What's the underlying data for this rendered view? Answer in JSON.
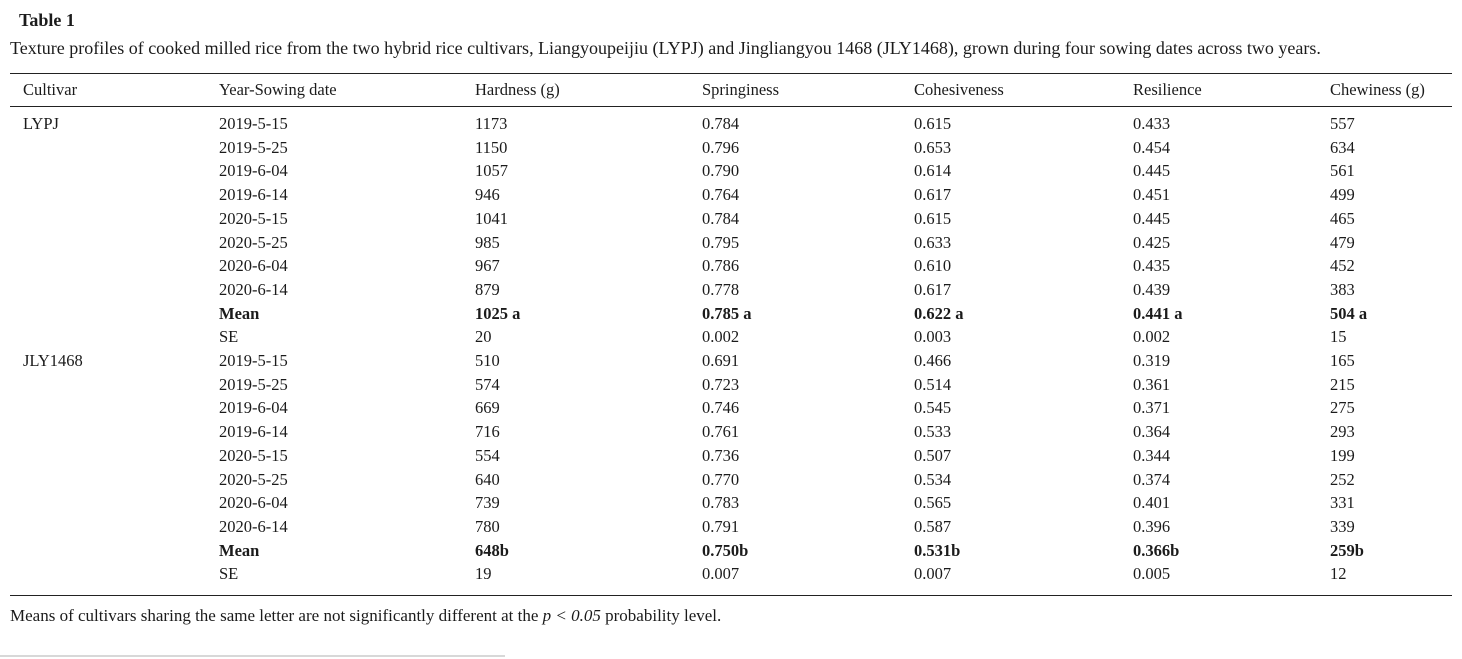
{
  "table": {
    "label": "Table 1",
    "caption": "Texture profiles of cooked milled rice from the two hybrid rice cultivars, Liangyoupeijiu (LYPJ) and Jingliangyou 1468 (JLY1468), grown during four sowing dates across two years.",
    "columns": [
      "Cultivar",
      "Year-Sowing date",
      "Hardness (g)",
      "Springiness",
      "Cohesiveness",
      "Resilience",
      "Chewiness (g)"
    ],
    "rows": [
      {
        "bold": false,
        "cells": [
          "LYPJ",
          "2019-5-15",
          "1173",
          "0.784",
          "0.615",
          "0.433",
          "557"
        ]
      },
      {
        "bold": false,
        "cells": [
          "",
          "2019-5-25",
          "1150",
          "0.796",
          "0.653",
          "0.454",
          "634"
        ]
      },
      {
        "bold": false,
        "cells": [
          "",
          "2019-6-04",
          "1057",
          "0.790",
          "0.614",
          "0.445",
          "561"
        ]
      },
      {
        "bold": false,
        "cells": [
          "",
          "2019-6-14",
          "946",
          "0.764",
          "0.617",
          "0.451",
          "499"
        ]
      },
      {
        "bold": false,
        "cells": [
          "",
          "2020-5-15",
          "1041",
          "0.784",
          "0.615",
          "0.445",
          "465"
        ]
      },
      {
        "bold": false,
        "cells": [
          "",
          "2020-5-25",
          "985",
          "0.795",
          "0.633",
          "0.425",
          "479"
        ]
      },
      {
        "bold": false,
        "cells": [
          "",
          "2020-6-04",
          "967",
          "0.786",
          "0.610",
          "0.435",
          "452"
        ]
      },
      {
        "bold": false,
        "cells": [
          "",
          "2020-6-14",
          "879",
          "0.778",
          "0.617",
          "0.439",
          "383"
        ]
      },
      {
        "bold": true,
        "cells": [
          "",
          "Mean",
          "1025 a",
          "0.785 a",
          "0.622 a",
          "0.441 a",
          "504 a"
        ]
      },
      {
        "bold": false,
        "cells": [
          "",
          "SE",
          "20",
          "0.002",
          "0.003",
          "0.002",
          "15"
        ]
      },
      {
        "bold": false,
        "cells": [
          "JLY1468",
          "2019-5-15",
          "510",
          "0.691",
          "0.466",
          "0.319",
          "165"
        ]
      },
      {
        "bold": false,
        "cells": [
          "",
          "2019-5-25",
          "574",
          "0.723",
          "0.514",
          "0.361",
          "215"
        ]
      },
      {
        "bold": false,
        "cells": [
          "",
          "2019-6-04",
          "669",
          "0.746",
          "0.545",
          "0.371",
          "275"
        ]
      },
      {
        "bold": false,
        "cells": [
          "",
          "2019-6-14",
          "716",
          "0.761",
          "0.533",
          "0.364",
          "293"
        ]
      },
      {
        "bold": false,
        "cells": [
          "",
          "2020-5-15",
          "554",
          "0.736",
          "0.507",
          "0.344",
          "199"
        ]
      },
      {
        "bold": false,
        "cells": [
          "",
          "2020-5-25",
          "640",
          "0.770",
          "0.534",
          "0.374",
          "252"
        ]
      },
      {
        "bold": false,
        "cells": [
          "",
          "2020-6-04",
          "739",
          "0.783",
          "0.565",
          "0.401",
          "331"
        ]
      },
      {
        "bold": false,
        "cells": [
          "",
          "2020-6-14",
          "780",
          "0.791",
          "0.587",
          "0.396",
          "339"
        ]
      },
      {
        "bold": true,
        "cells": [
          "",
          "Mean",
          "648b",
          "0.750b",
          "0.531b",
          "0.366b",
          "259b"
        ]
      },
      {
        "bold": false,
        "cells": [
          "",
          "SE",
          "19",
          "0.007",
          "0.007",
          "0.005",
          "12"
        ]
      }
    ],
    "footnote_pre": "Means of cultivars sharing the same letter are not significantly different at the ",
    "footnote_italic": "p < 0.05",
    "footnote_post": " probability level."
  },
  "chart_data": {
    "type": "table",
    "title": "Table 1. Texture profiles of cooked milled rice from LYPJ and JLY1468 across four sowing dates in two years",
    "columns": [
      "Cultivar",
      "Year-Sowing date",
      "Hardness (g)",
      "Springiness",
      "Cohesiveness",
      "Resilience",
      "Chewiness (g)"
    ],
    "series": [
      {
        "name": "LYPJ",
        "rows": [
          {
            "date": "2019-5-15",
            "hardness": 1173,
            "springiness": 0.784,
            "cohesiveness": 0.615,
            "resilience": 0.433,
            "chewiness": 557
          },
          {
            "date": "2019-5-25",
            "hardness": 1150,
            "springiness": 0.796,
            "cohesiveness": 0.653,
            "resilience": 0.454,
            "chewiness": 634
          },
          {
            "date": "2019-6-04",
            "hardness": 1057,
            "springiness": 0.79,
            "cohesiveness": 0.614,
            "resilience": 0.445,
            "chewiness": 561
          },
          {
            "date": "2019-6-14",
            "hardness": 946,
            "springiness": 0.764,
            "cohesiveness": 0.617,
            "resilience": 0.451,
            "chewiness": 499
          },
          {
            "date": "2020-5-15",
            "hardness": 1041,
            "springiness": 0.784,
            "cohesiveness": 0.615,
            "resilience": 0.445,
            "chewiness": 465
          },
          {
            "date": "2020-5-25",
            "hardness": 985,
            "springiness": 0.795,
            "cohesiveness": 0.633,
            "resilience": 0.425,
            "chewiness": 479
          },
          {
            "date": "2020-6-04",
            "hardness": 967,
            "springiness": 0.786,
            "cohesiveness": 0.61,
            "resilience": 0.435,
            "chewiness": 452
          },
          {
            "date": "2020-6-14",
            "hardness": 879,
            "springiness": 0.778,
            "cohesiveness": 0.617,
            "resilience": 0.439,
            "chewiness": 383
          }
        ],
        "mean": {
          "hardness": "1025 a",
          "springiness": "0.785 a",
          "cohesiveness": "0.622 a",
          "resilience": "0.441 a",
          "chewiness": "504 a"
        },
        "se": {
          "hardness": 20,
          "springiness": 0.002,
          "cohesiveness": 0.003,
          "resilience": 0.002,
          "chewiness": 15
        }
      },
      {
        "name": "JLY1468",
        "rows": [
          {
            "date": "2019-5-15",
            "hardness": 510,
            "springiness": 0.691,
            "cohesiveness": 0.466,
            "resilience": 0.319,
            "chewiness": 165
          },
          {
            "date": "2019-5-25",
            "hardness": 574,
            "springiness": 0.723,
            "cohesiveness": 0.514,
            "resilience": 0.361,
            "chewiness": 215
          },
          {
            "date": "2019-6-04",
            "hardness": 669,
            "springiness": 0.746,
            "cohesiveness": 0.545,
            "resilience": 0.371,
            "chewiness": 275
          },
          {
            "date": "2019-6-14",
            "hardness": 716,
            "springiness": 0.761,
            "cohesiveness": 0.533,
            "resilience": 0.364,
            "chewiness": 293
          },
          {
            "date": "2020-5-15",
            "hardness": 554,
            "springiness": 0.736,
            "cohesiveness": 0.507,
            "resilience": 0.344,
            "chewiness": 199
          },
          {
            "date": "2020-5-25",
            "hardness": 640,
            "springiness": 0.77,
            "cohesiveness": 0.534,
            "resilience": 0.374,
            "chewiness": 252
          },
          {
            "date": "2020-6-04",
            "hardness": 739,
            "springiness": 0.783,
            "cohesiveness": 0.565,
            "resilience": 0.401,
            "chewiness": 331
          },
          {
            "date": "2020-6-14",
            "hardness": 780,
            "springiness": 0.791,
            "cohesiveness": 0.587,
            "resilience": 0.396,
            "chewiness": 339
          }
        ],
        "mean": {
          "hardness": "648b",
          "springiness": "0.750b",
          "cohesiveness": "0.531b",
          "resilience": "0.366b",
          "chewiness": "259b"
        },
        "se": {
          "hardness": 19,
          "springiness": 0.007,
          "cohesiveness": 0.007,
          "resilience": 0.005,
          "chewiness": 12
        }
      }
    ]
  }
}
